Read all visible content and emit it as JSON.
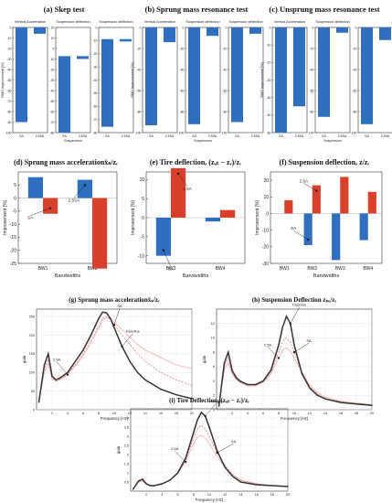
{
  "colors": {
    "blue": "#2f6fbf",
    "red": "#d9402b",
    "dark": "#333333",
    "pink": "#f2a5a5",
    "dashred": "#e07070"
  },
  "chart_data": [
    {
      "id": "a",
      "type": "bar",
      "title": "(a) Skep test",
      "subplots": [
        {
          "title": "Vertical Acceleration",
          "ylabel": "RMS Improvement [%]",
          "ylim": [
            -100,
            0
          ],
          "yticks": [
            "0",
            "-10",
            "-20",
            "-30",
            "-40",
            "-50",
            "-60",
            "-70",
            "-80",
            "-90",
            "-100"
          ],
          "categories": [
            "SA",
            "2.5SA"
          ],
          "values": [
            -90,
            -6
          ],
          "xlabel": ""
        },
        {
          "title": "Suspension deflection",
          "ylabel": "",
          "ylim": [
            -80,
            30
          ],
          "yticks": [
            "20",
            "10",
            "0",
            "-10",
            "-20",
            "-30",
            "-40",
            "-50",
            "-60",
            "-70",
            "-80"
          ],
          "categories": [
            "SA",
            "2.5SA"
          ],
          "values": [
            -80,
            -3
          ],
          "xlabel": "Suspension"
        },
        {
          "title": "Suspension deflection",
          "ylabel": "",
          "ylim": [
            -80,
            10
          ],
          "yticks": [
            "0",
            "-10",
            "-20",
            "-30",
            "-40",
            "-50",
            "-60",
            "-70",
            "-80"
          ],
          "categories": [
            "SA",
            "2.5SA"
          ],
          "values": [
            -75,
            -2
          ],
          "xlabel": ""
        }
      ]
    },
    {
      "id": "b",
      "type": "bar",
      "title": "(b) Sprung mass resonance test",
      "subplots": [
        {
          "title": "Vertical Acceleration",
          "ylabel": "RMS Improvement [%]",
          "ylim": [
            -100,
            0
          ],
          "yticks": [
            "0",
            "-20",
            "-40",
            "-60",
            "-80",
            "-100"
          ],
          "categories": [
            "SA",
            "2.5SA"
          ],
          "values": [
            -93,
            -14
          ],
          "xlabel": ""
        },
        {
          "title": "Suspension deflection",
          "ylabel": "",
          "ylim": [
            -100,
            0
          ],
          "yticks": [
            "0",
            "-20",
            "-40",
            "-60",
            "-80",
            "-100"
          ],
          "categories": [
            "SA",
            "2.5SA"
          ],
          "values": [
            -92,
            -8
          ],
          "xlabel": "Suspension"
        },
        {
          "title": "Suspension deflection",
          "ylabel": "",
          "ylim": [
            -100,
            0
          ],
          "yticks": [
            "0",
            "-20",
            "-40",
            "-60",
            "-80",
            "-100"
          ],
          "categories": [
            "SA",
            "2.5SA"
          ],
          "values": [
            -90,
            -6
          ],
          "xlabel": ""
        }
      ]
    },
    {
      "id": "c",
      "type": "bar",
      "title": "(c) Unsprung mass resonance test",
      "subplots": [
        {
          "title": "Vertical Acceleration",
          "ylabel": "RMS Improvement [%]",
          "ylim": [
            -60,
            0
          ],
          "yticks": [
            "0",
            "-10",
            "-20",
            "-30",
            "-40",
            "-50",
            "-60"
          ],
          "categories": [
            "SA",
            "2.5SA"
          ],
          "values": [
            -60,
            -45
          ],
          "xlabel": ""
        },
        {
          "title": "Suspension deflection",
          "ylabel": "",
          "ylim": [
            -100,
            0
          ],
          "yticks": [
            "0",
            "-20",
            "-40",
            "-60",
            "-80",
            "-100"
          ],
          "categories": [
            "SA",
            "2.5SA"
          ],
          "values": [
            -85,
            -5
          ],
          "xlabel": "Suspension"
        },
        {
          "title": "",
          "ylabel": "",
          "ylim": [
            -100,
            0
          ],
          "yticks": [
            "0",
            "-20",
            "-40",
            "-60",
            "-80",
            "-100"
          ],
          "categories": [
            "SA",
            "2.5SA"
          ],
          "values": [
            -92,
            -12
          ],
          "xlabel": ""
        }
      ]
    },
    {
      "id": "d",
      "type": "bar",
      "title": "(d) Sprung mass accelerationẍₛ/zᵣ",
      "ylabel": "Improvement [%]",
      "xlabel": "Bandwidths",
      "ylim": [
        -25,
        10
      ],
      "yticks": [
        "5",
        "0",
        "-5",
        "-10",
        "-15",
        "-20",
        "-25"
      ],
      "categories": [
        "BW1",
        "BW2"
      ],
      "series": [
        {
          "name": "SA",
          "values": [
            8,
            7
          ]
        },
        {
          "name": "2.5SA",
          "values": [
            -6,
            -27
          ]
        }
      ],
      "annotations": [
        "SA",
        "2.5SA"
      ]
    },
    {
      "id": "e",
      "type": "bar",
      "title": "(e) Tire deflection, (zᵤₜ − zᵣ)/zᵣ",
      "ylabel": "Improvement [%]",
      "xlabel": "Bandwidths",
      "ylim": [
        -12,
        12
      ],
      "yticks": [
        "10",
        "5",
        "0",
        "-5",
        "-10"
      ],
      "categories": [
        "BW3",
        "BW4"
      ],
      "series": [
        {
          "name": "SA",
          "values": [
            -10,
            -1
          ]
        },
        {
          "name": "2.5SA",
          "values": [
            13,
            2
          ]
        }
      ],
      "annotations": [
        "2.5A",
        "SA"
      ]
    },
    {
      "id": "f",
      "type": "bar",
      "title": "(f) Suspension deflection, z/zᵣ",
      "ylabel": "Improvement [%]",
      "xlabel": "Bandwidths",
      "ylim": [
        -30,
        25
      ],
      "yticks": [
        "20",
        "10",
        "0",
        "-10",
        "-20",
        "-30"
      ],
      "categories": [
        "BW1",
        "BW2",
        "BW3",
        "BW4"
      ],
      "series": [
        {
          "name": "SA",
          "values": [
            0,
            -19,
            -28,
            -16
          ]
        },
        {
          "name": "2.5SA",
          "values": [
            8,
            17,
            22,
            13
          ]
        }
      ],
      "annotations": [
        "2.5A",
        "SA"
      ]
    },
    {
      "id": "g",
      "type": "line",
      "title": "(g) Sprung mass accelerationẍₛ/zᵣ",
      "ylabel": "gain",
      "xlabel": "Frequency [Hz]",
      "xlim": [
        0,
        20
      ],
      "ylim": [
        0,
        270
      ],
      "xticks": [
        "2",
        "4",
        "6",
        "8",
        "10",
        "12",
        "14",
        "16",
        "18",
        "20"
      ],
      "yticks": [
        "250",
        "200",
        "150",
        "100",
        "50",
        "0"
      ],
      "x": [
        0.3,
        1,
        1.5,
        2,
        2.5,
        3,
        4,
        5,
        6,
        7,
        8,
        8.5,
        9,
        9.5,
        10,
        11,
        12,
        13,
        14,
        16,
        18,
        20
      ],
      "series": [
        {
          "name": "baseline",
          "values": [
            20,
            120,
            150,
            90,
            80,
            85,
            100,
            130,
            160,
            200,
            245,
            262,
            260,
            245,
            220,
            170,
            130,
            100,
            80,
            55,
            40,
            30
          ]
        },
        {
          "name": "SA",
          "values": [
            20,
            110,
            135,
            85,
            78,
            82,
            96,
            122,
            150,
            185,
            225,
            245,
            250,
            242,
            228,
            200,
            175,
            150,
            130,
            100,
            80,
            65
          ]
        },
        {
          "name": "2.5SA",
          "values": [
            20,
            100,
            125,
            82,
            76,
            80,
            94,
            118,
            145,
            178,
            218,
            240,
            248,
            245,
            235,
            215,
            195,
            175,
            160,
            140,
            120,
            110
          ]
        }
      ],
      "annotations": [
        "2.5A",
        "SA",
        "baseline"
      ]
    },
    {
      "id": "h",
      "type": "line",
      "title": "(h) Suspension Deflection zₛᵤ/zᵣ",
      "ylabel": "gain",
      "xlabel": "Frequency [Hz]",
      "xlim": [
        0,
        20
      ],
      "ylim": [
        0,
        14
      ],
      "xticks": [
        "2",
        "4",
        "6",
        "8",
        "10",
        "12",
        "14",
        "16",
        "18",
        "20"
      ],
      "yticks": [
        "12",
        "10",
        "8",
        "6",
        "4",
        "2",
        "0"
      ],
      "x": [
        0.3,
        1,
        1.5,
        2,
        2.5,
        3,
        4,
        5,
        6,
        7,
        8,
        8.5,
        9,
        9.5,
        10,
        11,
        12,
        13,
        14,
        16,
        18,
        20
      ],
      "series": [
        {
          "name": "baseline",
          "values": [
            0.5,
            6.5,
            8,
            5.5,
            4.5,
            4,
            3.5,
            3.5,
            4,
            5.5,
            9,
            11.5,
            13,
            12,
            9,
            5,
            3,
            2,
            1.5,
            1,
            0.8,
            0.6
          ]
        },
        {
          "name": "SA",
          "values": [
            0.5,
            6,
            7.2,
            5.2,
            4.3,
            3.9,
            3.4,
            3.4,
            3.9,
            5.2,
            8,
            9.5,
            10,
            9.4,
            8,
            5.2,
            3.2,
            2.2,
            1.6,
            1.1,
            0.9,
            0.7
          ]
        },
        {
          "name": "2.5SA",
          "values": [
            0.5,
            5.6,
            6.6,
            5,
            4.2,
            3.8,
            3.3,
            3.3,
            3.8,
            5,
            7.2,
            8.3,
            8.6,
            8.2,
            7.2,
            5.2,
            3.4,
            2.4,
            1.8,
            1.2,
            0.9,
            0.7
          ]
        }
      ],
      "annotations": [
        "2.5A",
        "baseline",
        "SA"
      ]
    },
    {
      "id": "i",
      "type": "line",
      "title": "(i) Tire Deflection, (zᵤₜ − zᵣ)/zᵣ",
      "ylabel": "gain",
      "xlabel": "Frequency [Hz]",
      "xlim": [
        0,
        20
      ],
      "ylim": [
        0,
        4.5
      ],
      "xticks": [
        "2",
        "4",
        "6",
        "8",
        "10",
        "12",
        "14",
        "16",
        "18",
        "20"
      ],
      "yticks": [
        "4",
        "3.5",
        "3",
        "2.5",
        "2",
        "1.5",
        "1",
        "0.5"
      ],
      "x": [
        0.3,
        1,
        1.5,
        2,
        2.5,
        3,
        4,
        5,
        6,
        7,
        8,
        8.5,
        9,
        9.5,
        10,
        11,
        12,
        13,
        14,
        16,
        18,
        20
      ],
      "series": [
        {
          "name": "baseline",
          "values": [
            0.1,
            0.55,
            0.65,
            0.4,
            0.3,
            0.3,
            0.4,
            0.6,
            1.0,
            1.8,
            3.2,
            3.9,
            4.3,
            4.1,
            3.5,
            2.2,
            1.3,
            0.8,
            0.5,
            0.35,
            0.3,
            0.25
          ]
        },
        {
          "name": "SA",
          "values": [
            0.1,
            0.5,
            0.6,
            0.38,
            0.3,
            0.3,
            0.4,
            0.6,
            1.0,
            1.7,
            2.9,
            3.4,
            3.6,
            3.4,
            3.0,
            2.1,
            1.4,
            0.9,
            0.6,
            0.4,
            0.3,
            0.25
          ]
        },
        {
          "name": "2.5SA",
          "values": [
            0.1,
            0.48,
            0.56,
            0.36,
            0.28,
            0.28,
            0.38,
            0.58,
            0.95,
            1.6,
            2.6,
            2.95,
            3.05,
            2.9,
            2.6,
            1.9,
            1.3,
            0.9,
            0.6,
            0.4,
            0.3,
            0.25
          ]
        }
      ],
      "annotations": [
        "2.5A",
        "baseline",
        "SA"
      ]
    }
  ]
}
